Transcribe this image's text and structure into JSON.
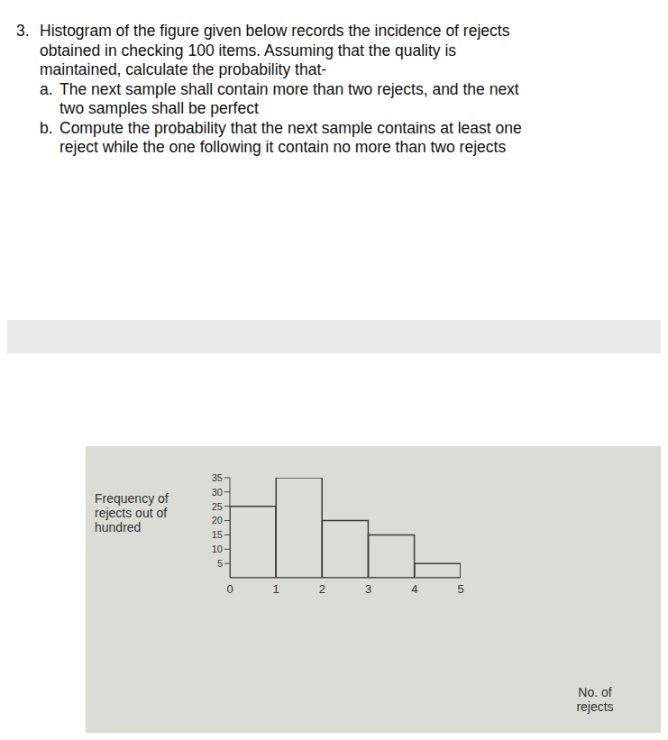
{
  "question": {
    "number": "3.",
    "stem": [
      "Histogram of the figure given below records the incidence of rejects",
      "obtained in checking 100 items. Assuming that the quality is",
      "maintained, calculate the probability that-"
    ],
    "parts": [
      {
        "label": "a.",
        "lines": [
          "The next sample shall contain more than two rejects, and the next",
          "two samples shall be perfect"
        ]
      },
      {
        "label": "b.",
        "lines": [
          "Compute the probability that the next sample contains at least one",
          "reject while the one following it contain no more than two rejects"
        ]
      }
    ]
  },
  "chart_data": {
    "type": "histogram",
    "x_label": "No. of rejects",
    "y_label": "Frequency of rejects out of hundred",
    "bins": [
      0,
      1,
      2,
      3,
      4,
      5
    ],
    "values": [
      25,
      35,
      20,
      15,
      5
    ],
    "color": "#3a3a3a",
    "xlim": [
      0,
      5
    ],
    "xticks": [
      0,
      1,
      2,
      3,
      4,
      5
    ],
    "ylim": [
      0,
      35
    ],
    "yticks": [
      5,
      10,
      15,
      20,
      25,
      30,
      35
    ],
    "grid": false
  }
}
